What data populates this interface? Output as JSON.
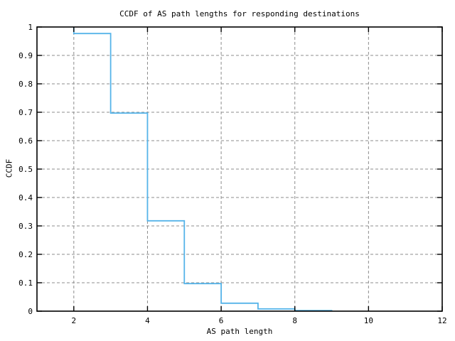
{
  "chart_data": {
    "type": "line",
    "subtype": "step-function-ccdf",
    "title": "CCDF of AS path lengths for responding destinations",
    "xlabel": "AS path length",
    "ylabel": "CCDF",
    "xlim": [
      1,
      12
    ],
    "ylim": [
      0,
      1
    ],
    "grid": true,
    "legend_position": "none",
    "line_color": "#56b4e9",
    "grid_color": "#8c8c8c",
    "x_ticks": [
      {
        "v": 2,
        "label": "2"
      },
      {
        "v": 4,
        "label": "4"
      },
      {
        "v": 6,
        "label": "6"
      },
      {
        "v": 8,
        "label": "8"
      },
      {
        "v": 10,
        "label": "10"
      },
      {
        "v": 12,
        "label": "12"
      }
    ],
    "y_ticks": [
      {
        "v": 0,
        "label": "0"
      },
      {
        "v": 0.1,
        "label": "0.1"
      },
      {
        "v": 0.2,
        "label": "0.2"
      },
      {
        "v": 0.3,
        "label": "0.3"
      },
      {
        "v": 0.4,
        "label": "0.4"
      },
      {
        "v": 0.5,
        "label": "0.5"
      },
      {
        "v": 0.6,
        "label": "0.6"
      },
      {
        "v": 0.7,
        "label": "0.7"
      },
      {
        "v": 0.8,
        "label": "0.8"
      },
      {
        "v": 0.9,
        "label": "0.9"
      },
      {
        "v": 1,
        "label": "1"
      }
    ],
    "series": [
      {
        "name": "CCDF of AS path length",
        "points": [
          {
            "x": 2,
            "ccdf": 1.0
          },
          {
            "x": 2,
            "ccdf": 0.977
          },
          {
            "x": 3,
            "ccdf": 0.977
          },
          {
            "x": 3,
            "ccdf": 0.697
          },
          {
            "x": 4,
            "ccdf": 0.697
          },
          {
            "x": 4,
            "ccdf": 0.318
          },
          {
            "x": 5,
            "ccdf": 0.318
          },
          {
            "x": 5,
            "ccdf": 0.097
          },
          {
            "x": 6,
            "ccdf": 0.097
          },
          {
            "x": 6,
            "ccdf": 0.028
          },
          {
            "x": 7,
            "ccdf": 0.028
          },
          {
            "x": 7,
            "ccdf": 0.008
          },
          {
            "x": 8,
            "ccdf": 0.008
          },
          {
            "x": 8,
            "ccdf": 0.002
          },
          {
            "x": 9,
            "ccdf": 0.002
          },
          {
            "x": 9,
            "ccdf": 0.0
          }
        ]
      }
    ]
  }
}
